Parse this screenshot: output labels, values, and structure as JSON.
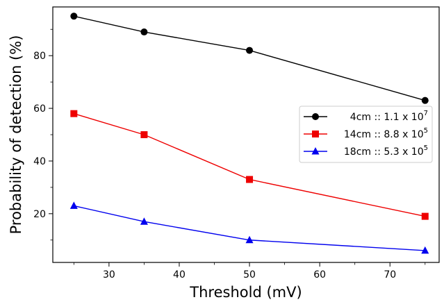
{
  "chart_data": {
    "type": "line",
    "xlabel": "Threshold (mV)",
    "ylabel": "Probability of detection (%)",
    "xlim": [
      22,
      77
    ],
    "ylim": [
      1.5,
      98.5
    ],
    "x_ticks_major": [
      30,
      40,
      50,
      60,
      70
    ],
    "x_ticks_minor": [
      25,
      35,
      45,
      55,
      65,
      75
    ],
    "y_ticks_major": [
      20,
      40,
      60,
      80
    ],
    "y_ticks_minor": [
      10,
      30,
      50,
      70,
      90
    ],
    "grid": false,
    "legend_position": "center-right",
    "x": [
      25,
      35,
      50,
      75
    ],
    "series": [
      {
        "legend_prefix": "4cm :: 1.1 x 10",
        "legend_exp": "7",
        "values": [
          95,
          89,
          82,
          63
        ],
        "color": "#000000",
        "marker": "circle"
      },
      {
        "legend_prefix": "14cm :: 8.8 x 10",
        "legend_exp": "5",
        "values": [
          58,
          50,
          33,
          19
        ],
        "color": "#ee0000",
        "marker": "square"
      },
      {
        "legend_prefix": "18cm :: 5.3 x 10",
        "legend_exp": "5",
        "values": [
          23,
          17,
          10,
          6
        ],
        "color": "#0000ee",
        "marker": "triangle"
      }
    ]
  }
}
